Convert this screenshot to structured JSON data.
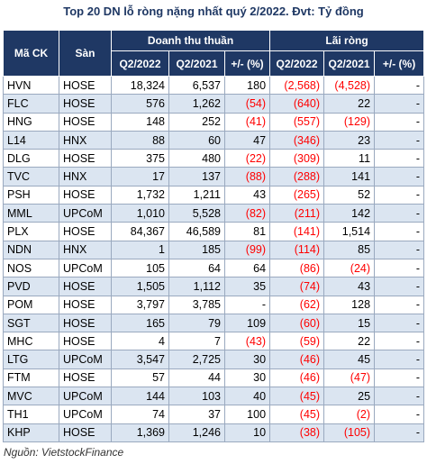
{
  "title": "Top 20 DN lỗ ròng nặng nhất quý 2/2022. Đvt: Tỷ đồng",
  "headers": {
    "code": "Mã CK",
    "exchange": "Sàn",
    "revenue_group": "Doanh thu thuần",
    "profit_group": "Lãi ròng",
    "rev_q2_2022": "Q2/2022",
    "rev_q2_2021": "Q2/2021",
    "rev_change": "+/- (%)",
    "np_q2_2022": "Q2/2022",
    "np_q2_2021": "Q2/2021",
    "np_change": "+/- (%)"
  },
  "rows": [
    {
      "code": "HVN",
      "exchange": "HOSE",
      "rev22": "18,324",
      "rev21": "6,537",
      "revchg": "180",
      "np22": "(2,568)",
      "np21": "(4,528)",
      "npchg": "-"
    },
    {
      "code": "FLC",
      "exchange": "HOSE",
      "rev22": "576",
      "rev21": "1,262",
      "revchg": "(54)",
      "np22": "(640)",
      "np21": "22",
      "npchg": "-"
    },
    {
      "code": "HNG",
      "exchange": "HOSE",
      "rev22": "148",
      "rev21": "252",
      "revchg": "(41)",
      "np22": "(557)",
      "np21": "(129)",
      "npchg": "-"
    },
    {
      "code": "L14",
      "exchange": "HNX",
      "rev22": "88",
      "rev21": "60",
      "revchg": "47",
      "np22": "(346)",
      "np21": "23",
      "npchg": "-"
    },
    {
      "code": "DLG",
      "exchange": "HOSE",
      "rev22": "375",
      "rev21": "480",
      "revchg": "(22)",
      "np22": "(309)",
      "np21": "11",
      "npchg": "-"
    },
    {
      "code": "TVC",
      "exchange": "HNX",
      "rev22": "17",
      "rev21": "137",
      "revchg": "(88)",
      "np22": "(288)",
      "np21": "141",
      "npchg": "-"
    },
    {
      "code": "PSH",
      "exchange": "HOSE",
      "rev22": "1,732",
      "rev21": "1,211",
      "revchg": "43",
      "np22": "(265)",
      "np21": "52",
      "npchg": "-"
    },
    {
      "code": "MML",
      "exchange": "UPCoM",
      "rev22": "1,010",
      "rev21": "5,528",
      "revchg": "(82)",
      "np22": "(211)",
      "np21": "142",
      "npchg": "-"
    },
    {
      "code": "PLX",
      "exchange": "HOSE",
      "rev22": "84,367",
      "rev21": "46,589",
      "revchg": "81",
      "np22": "(141)",
      "np21": "1,514",
      "npchg": "-"
    },
    {
      "code": "NDN",
      "exchange": "HNX",
      "rev22": "1",
      "rev21": "185",
      "revchg": "(99)",
      "np22": "(114)",
      "np21": "85",
      "npchg": "-"
    },
    {
      "code": "NOS",
      "exchange": "UPCoM",
      "rev22": "105",
      "rev21": "64",
      "revchg": "64",
      "np22": "(86)",
      "np21": "(24)",
      "npchg": "-"
    },
    {
      "code": "PVD",
      "exchange": "HOSE",
      "rev22": "1,505",
      "rev21": "1,112",
      "revchg": "35",
      "np22": "(74)",
      "np21": "43",
      "npchg": "-"
    },
    {
      "code": "POM",
      "exchange": "HOSE",
      "rev22": "3,797",
      "rev21": "3,785",
      "revchg": "-",
      "np22": "(62)",
      "np21": "128",
      "npchg": "-"
    },
    {
      "code": "SGT",
      "exchange": "HOSE",
      "rev22": "165",
      "rev21": "79",
      "revchg": "109",
      "np22": "(60)",
      "np21": "15",
      "npchg": "-"
    },
    {
      "code": "MHC",
      "exchange": "HOSE",
      "rev22": "4",
      "rev21": "7",
      "revchg": "(43)",
      "np22": "(59)",
      "np21": "22",
      "npchg": "-"
    },
    {
      "code": "LTG",
      "exchange": "UPCoM",
      "rev22": "3,547",
      "rev21": "2,725",
      "revchg": "30",
      "np22": "(46)",
      "np21": "45",
      "npchg": "-"
    },
    {
      "code": "FTM",
      "exchange": "HOSE",
      "rev22": "57",
      "rev21": "44",
      "revchg": "30",
      "np22": "(46)",
      "np21": "(47)",
      "npchg": "-"
    },
    {
      "code": "MVC",
      "exchange": "UPCoM",
      "rev22": "144",
      "rev21": "103",
      "revchg": "40",
      "np22": "(45)",
      "np21": "25",
      "npchg": "-"
    },
    {
      "code": "TH1",
      "exchange": "UPCoM",
      "rev22": "74",
      "rev21": "37",
      "revchg": "100",
      "np22": "(45)",
      "np21": "(2)",
      "npchg": "-"
    },
    {
      "code": "KHP",
      "exchange": "HOSE",
      "rev22": "1,369",
      "rev21": "1,246",
      "revchg": "10",
      "np22": "(38)",
      "np21": "(105)",
      "npchg": "-"
    }
  ],
  "source": "Nguồn: VietstockFinance",
  "colors": {
    "header_bg": "#1f3864",
    "stripe": "#dbe5f1",
    "negative": "#ff0000"
  }
}
